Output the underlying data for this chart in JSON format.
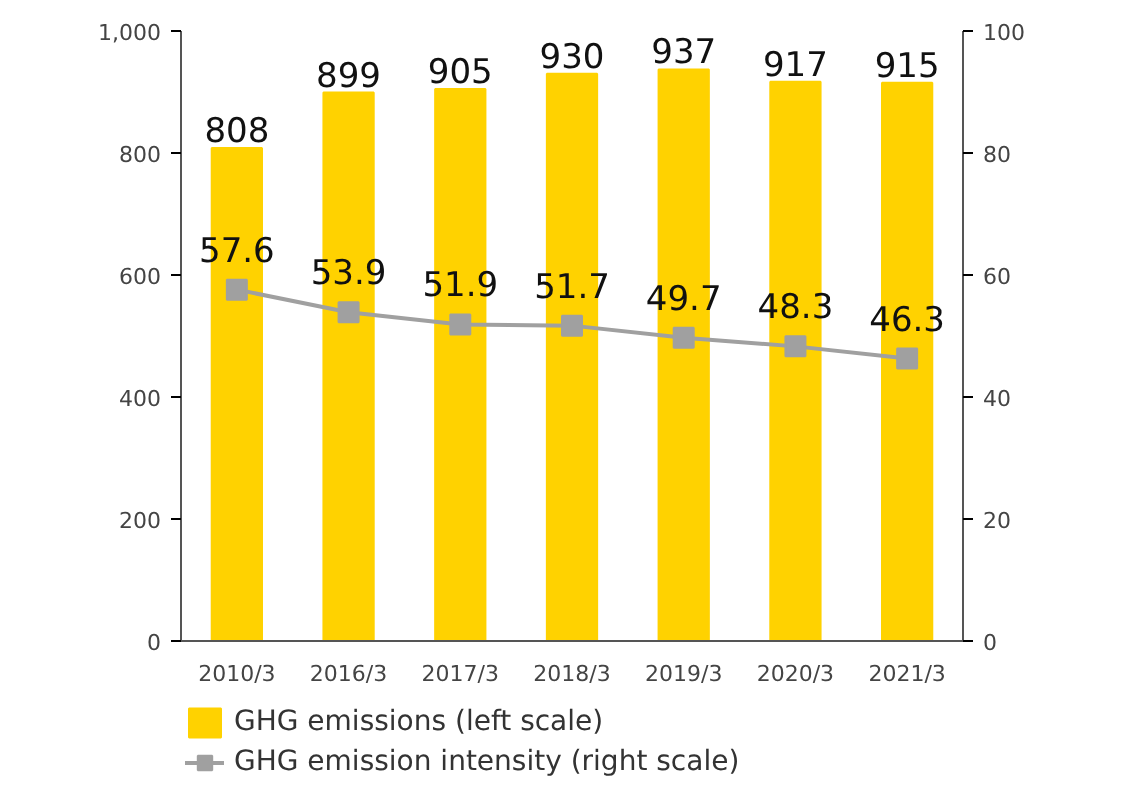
{
  "chart_data": {
    "type": "bar",
    "categories": [
      "2010/3",
      "2016/3",
      "2017/3",
      "2018/3",
      "2019/3",
      "2020/3",
      "2021/3"
    ],
    "series": [
      {
        "name": "GHG emissions (left scale)",
        "color": "#ffd200",
        "values": [
          808,
          899,
          905,
          930,
          937,
          917,
          915
        ]
      },
      {
        "name": "GHG emission intensity (right scale)",
        "type": "line",
        "axis": "y2",
        "color": "#a0a0a0",
        "marker": "square",
        "values": [
          57.6,
          53.9,
          51.9,
          51.7,
          49.7,
          48.3,
          46.3
        ]
      }
    ],
    "ylim": [
      0,
      1000
    ],
    "yticks": [
      0,
      200,
      400,
      600,
      800,
      {
        "value": 1000,
        "label": "1,000"
      }
    ],
    "y2lim": [
      0,
      100
    ],
    "y2ticks": [
      0,
      20,
      40,
      60,
      80,
      100
    ],
    "data_labels": true,
    "grid": false,
    "legend": "bottom left"
  }
}
